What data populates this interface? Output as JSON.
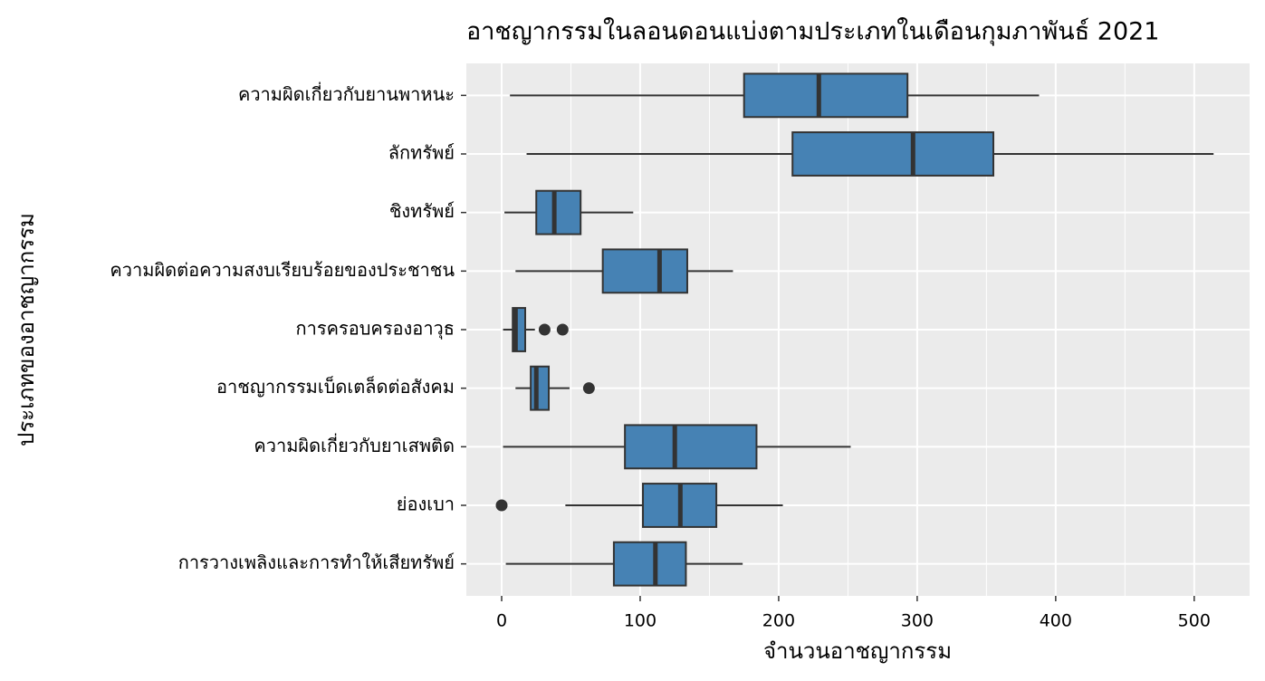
{
  "chart_data": {
    "type": "boxplot",
    "title": "อาชญากรรมในลอนดอนแบ่งตามประเภทในเดือนกุมภาพันธ์ 2021",
    "x_label": "จำนวนอาชญากรรม",
    "y_label": "ประเภทของอาชญากรรม",
    "categories": [
      "ความผิดเกี่ยวกับยานพาหนะ",
      "ลักทรัพย์",
      "ชิงทรัพย์",
      "ความผิดต่อความสงบเรียบร้อยของประชาชน",
      "การครอบครองอาวุธ",
      "อาชญากรรมเบ็ดเตล็ดต่อสังคม",
      "ความผิดเกี่ยวกับยาเสพติด",
      "ย่องเบา",
      "การวางเพลิงและการทำให้เสียทรัพย์"
    ],
    "boxes": [
      {
        "low": 6,
        "q1": 175,
        "median": 229,
        "q3": 293,
        "high": 388,
        "outliers": []
      },
      {
        "low": 18,
        "q1": 210,
        "median": 297,
        "q3": 355,
        "high": 514,
        "outliers": []
      },
      {
        "low": 2,
        "q1": 25,
        "median": 38,
        "q3": 57,
        "high": 95,
        "outliers": []
      },
      {
        "low": 10,
        "q1": 73,
        "median": 114,
        "q3": 134,
        "high": 167,
        "outliers": []
      },
      {
        "low": 1,
        "q1": 8,
        "median": 10,
        "q3": 17,
        "high": 24,
        "outliers": [
          31,
          44
        ]
      },
      {
        "low": 10,
        "q1": 21,
        "median": 25,
        "q3": 34,
        "high": 49,
        "outliers": [
          63
        ]
      },
      {
        "low": 1,
        "q1": 89,
        "median": 125,
        "q3": 184,
        "high": 252,
        "outliers": []
      },
      {
        "low": 46,
        "q1": 102,
        "median": 129,
        "q3": 155,
        "high": 203,
        "outliers": [
          0
        ]
      },
      {
        "low": 3,
        "q1": 81,
        "median": 111,
        "q3": 133,
        "high": 174,
        "outliers": []
      }
    ],
    "color": "#4682b4",
    "xlim": [
      -25.5,
      540
    ],
    "xticks": [
      0,
      100,
      200,
      300,
      400,
      500
    ],
    "grid": true
  }
}
